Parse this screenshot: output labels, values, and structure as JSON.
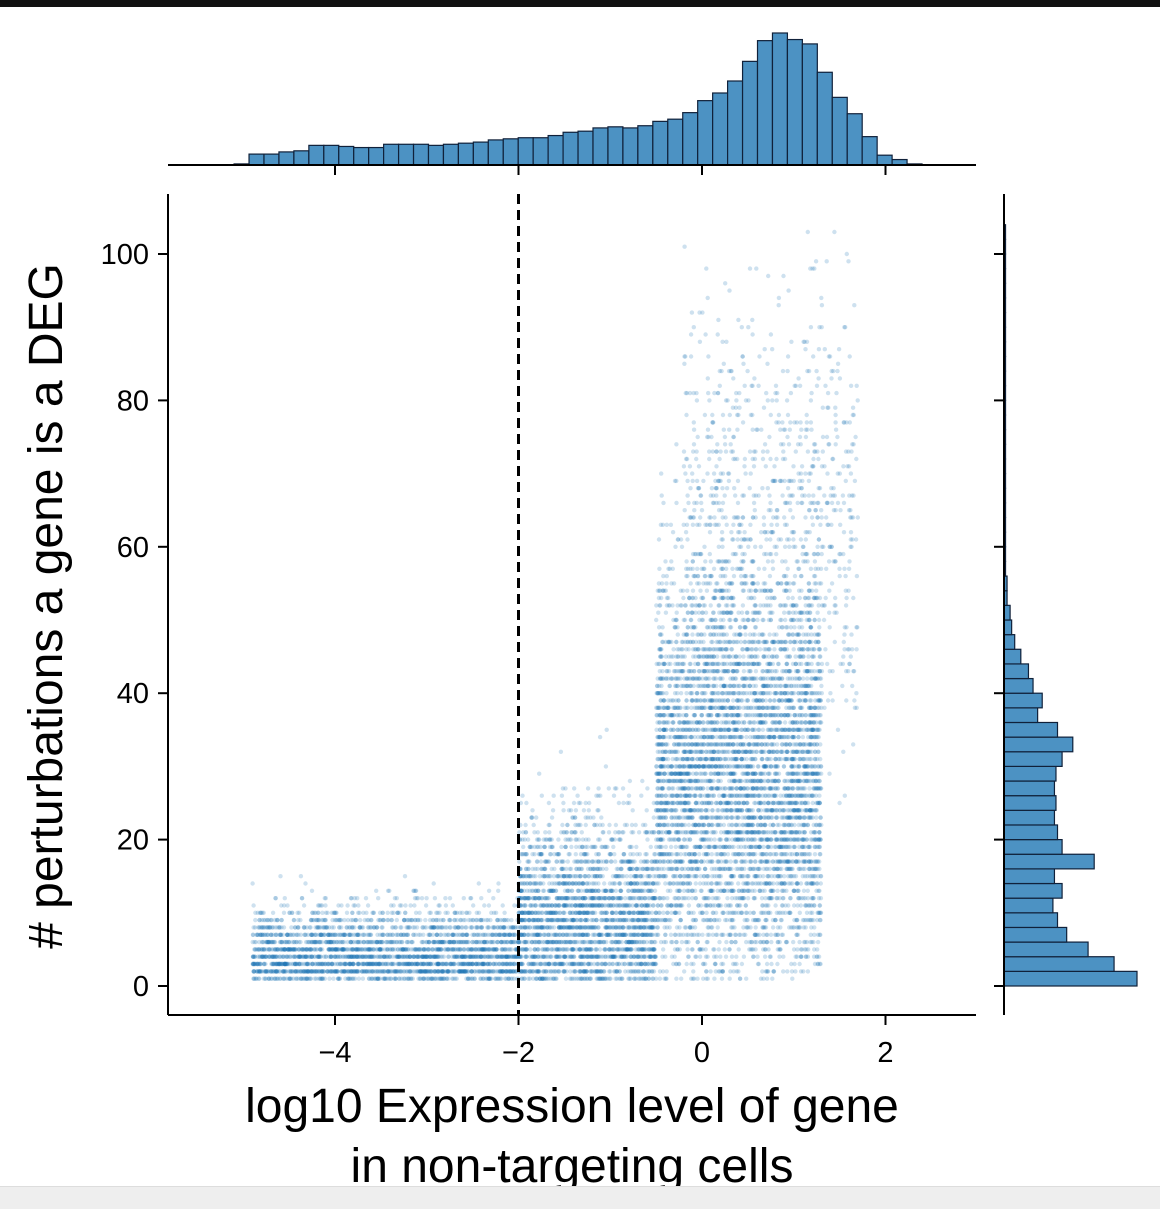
{
  "chart_data": {
    "type": "scatter",
    "title": "",
    "xlabel_lines": [
      "log10 Expression level of gene",
      "in non-targeting cells"
    ],
    "ylabel": "# perturbations a gene is a DEG",
    "xlim": [
      -5.8,
      3.0
    ],
    "ylim": [
      -4,
      108
    ],
    "xticks": [
      -4,
      -2,
      0,
      2
    ],
    "xtick_labels": [
      "−4",
      "−2",
      "0",
      "2"
    ],
    "yticks": [
      0,
      20,
      40,
      60,
      80,
      100
    ],
    "ytick_labels": [
      "0",
      "20",
      "40",
      "60",
      "80",
      "100"
    ],
    "threshold_line": {
      "x": -2,
      "style": "dashed"
    },
    "marginal_x_histogram": {
      "bin_start": -5.1,
      "bin_width": 0.163,
      "counts": [
        1,
        10,
        10,
        12,
        13,
        18,
        18,
        17,
        16,
        16,
        19,
        19,
        19,
        18,
        19,
        20,
        21,
        23,
        24,
        25,
        25,
        27,
        30,
        31,
        34,
        35,
        34,
        36,
        40,
        42,
        48,
        59,
        66,
        77,
        95,
        114,
        121,
        115,
        111,
        85,
        62,
        47,
        26,
        9,
        5,
        1
      ]
    },
    "marginal_y_histogram": {
      "bin_width": 2,
      "counts": [
        87,
        72,
        55,
        41,
        35,
        32,
        38,
        33,
        59,
        38,
        35,
        33,
        34,
        33,
        34,
        38,
        45,
        35,
        22,
        25,
        19,
        16,
        11,
        7,
        5,
        4,
        2,
        2,
        1,
        1,
        1,
        1,
        1,
        1,
        1,
        1,
        1,
        1,
        1,
        1,
        1,
        1,
        1,
        1,
        1,
        1,
        1,
        1,
        1,
        1,
        1,
        1
      ]
    },
    "scatter_sampling": {
      "groups": [
        {
          "x_range": [
            -4.9,
            -2.0
          ],
          "y_mean": 4,
          "y_spread": 3.5,
          "n": 2600
        },
        {
          "x_range": [
            -2.0,
            -0.5
          ],
          "y_mean": 9,
          "y_spread": 7,
          "n": 2400
        },
        {
          "x_range": [
            -0.5,
            1.3
          ],
          "y_mean": 28,
          "y_spread": 14,
          "n": 5200
        },
        {
          "x_range": [
            -0.2,
            1.7
          ],
          "y_mean": 62,
          "y_spread": 16,
          "n": 1000
        }
      ],
      "y_integer_valued": true,
      "point_color": "#1f77b4",
      "point_alpha": 0.22
    }
  },
  "colors": {
    "bar_fill": "#4c92c3",
    "bar_edge": "#10213a",
    "axis": "#000000"
  }
}
